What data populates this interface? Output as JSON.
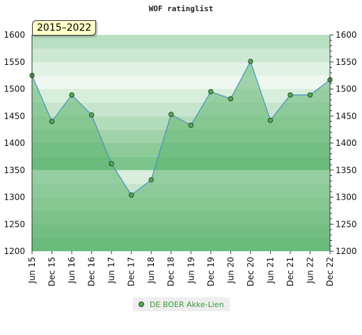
{
  "chart_data": {
    "type": "line",
    "title": "WOF ratinglist",
    "badge": "2015–2022",
    "categories": [
      "Jun 15",
      "Dec 15",
      "Jun 16",
      "Dec 16",
      "Jun 17",
      "Dec 17",
      "Jun 18",
      "Dec 18",
      "Jun 19",
      "Dec 19",
      "Jun 20",
      "Dec 20",
      "Jun 21",
      "Dec 21",
      "Jun 22",
      "Dec 22"
    ],
    "series": [
      {
        "name": "DE BOER Akke-Lien",
        "values": [
          1525,
          1440,
          1489,
          1452,
          1362,
          1304,
          1332,
          1453,
          1433,
          1495,
          1482,
          1551,
          1442,
          1489,
          1489,
          1517
        ]
      }
    ],
    "ylim": [
      1200,
      1600
    ],
    "yticks": [
      1200,
      1250,
      1300,
      1350,
      1400,
      1450,
      1500,
      1550,
      1600
    ],
    "y_axes": "left and right",
    "grid": "horizontal green bands",
    "legend_position": "bottom-center",
    "colors": {
      "line": "#4a90c0",
      "area": "#5fb56f",
      "point": "#5aa55a",
      "point_stroke": "#1d4d1d"
    }
  }
}
